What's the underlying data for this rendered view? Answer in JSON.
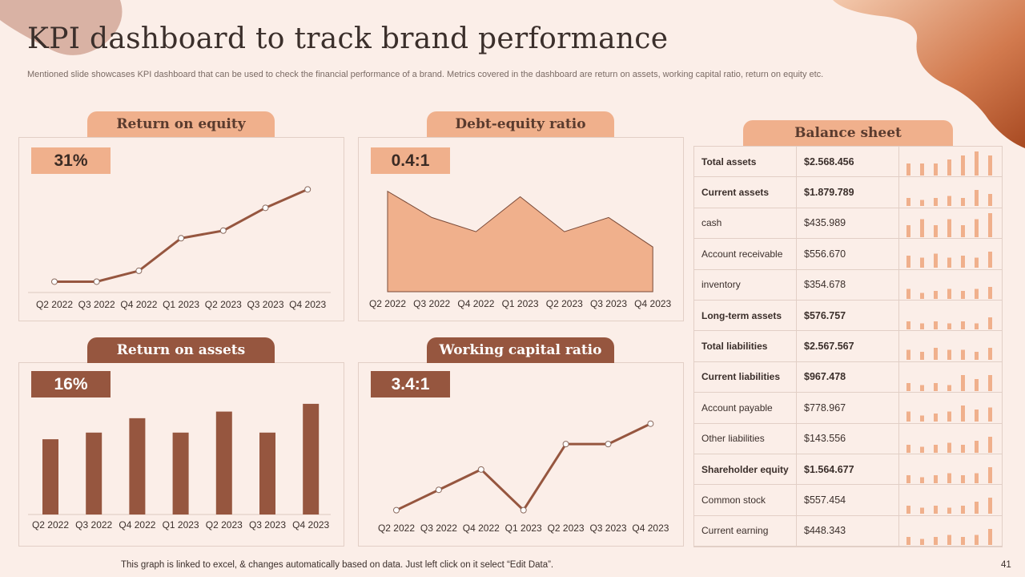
{
  "title": "KPI dashboard to track brand performance",
  "subtitle": "Mentioned slide showcases KPI dashboard that can be used to check the financial performance of a brand. Metrics covered in the dashboard are return on assets, working capital ratio, return on equity etc.",
  "footer": "This graph is linked to excel, & changes automatically based on data. Just left click on it select “Edit Data”.",
  "page_number": "41",
  "colors": {
    "light": "#f0b08c",
    "dark": "#96563f",
    "background": "#fbeee8"
  },
  "panels": {
    "roe": {
      "tab": "Return on equity",
      "kpi": "31%"
    },
    "der": {
      "tab": "Debt-equity ratio",
      "kpi": "0.4:1"
    },
    "roa": {
      "tab": "Return on assets",
      "kpi": "16%"
    },
    "wcr": {
      "tab": "Working capital ratio",
      "kpi": "3.4:1"
    },
    "bs": {
      "tab": "Balance sheet"
    }
  },
  "chart_data": [
    {
      "id": "roe",
      "type": "line",
      "categories": [
        "Q2 2022",
        "Q3 2022",
        "Q4 2022",
        "Q1 2023",
        "Q2 2023",
        "Q3 2023",
        "Q4 2023"
      ],
      "values": [
        1.0,
        1.0,
        2.0,
        5.0,
        5.7,
        7.8,
        9.5
      ],
      "ylim": [
        0,
        11
      ],
      "grid": false
    },
    {
      "id": "der",
      "type": "area",
      "categories": [
        "Q2 2022",
        "Q3 2022",
        "Q4 2022",
        "Q1 2023",
        "Q2 2023",
        "Q3 2023",
        "Q4 2023"
      ],
      "values": [
        9.2,
        6.8,
        5.5,
        8.7,
        5.5,
        6.8,
        4.1
      ],
      "ylim": [
        0,
        10.5
      ],
      "grid": false
    },
    {
      "id": "roa",
      "type": "bar",
      "categories": [
        "Q2 2022",
        "Q3 2022",
        "Q4 2022",
        "Q1 2023",
        "Q2 2023",
        "Q3 2023",
        "Q4 2023"
      ],
      "values": [
        6.8,
        7.4,
        8.7,
        7.4,
        9.3,
        7.4,
        10.0
      ],
      "ylim": [
        0,
        10.5
      ],
      "grid": false
    },
    {
      "id": "wcr",
      "type": "line",
      "categories": [
        "Q2 2022",
        "Q3 2022",
        "Q4 2022",
        "Q1 2023",
        "Q2 2023",
        "Q3 2023",
        "Q4 2023"
      ],
      "values": [
        2.0,
        4.0,
        6.0,
        2.0,
        8.5,
        8.5,
        10.5
      ],
      "ylim": [
        0,
        13
      ],
      "grid": false
    }
  ],
  "balance_sheet": [
    {
      "label": "Total assets",
      "value": "$2.568.456",
      "bold": true,
      "spark": [
        3,
        3,
        3,
        4,
        5,
        6,
        5
      ]
    },
    {
      "label": "Current assets",
      "value": "$1.879.789",
      "bold": true,
      "spark": [
        2,
        1.5,
        2,
        2.5,
        2,
        4,
        3
      ]
    },
    {
      "label": "cash",
      "value": "$435.989",
      "bold": false,
      "spark": [
        3,
        4.5,
        3,
        4.5,
        3,
        4.5,
        6
      ]
    },
    {
      "label": "Account receivable",
      "value": "$556.670",
      "bold": false,
      "spark": [
        3,
        2.5,
        3.5,
        2.5,
        3,
        2.5,
        4
      ]
    },
    {
      "label": "inventory",
      "value": "$354.678",
      "bold": false,
      "spark": [
        2.5,
        1.5,
        2,
        2.5,
        2,
        2.5,
        3
      ]
    },
    {
      "label": "Long-term assets",
      "value": "$576.757",
      "bold": true,
      "spark": [
        2,
        1.5,
        2,
        1.5,
        2,
        1.5,
        3
      ]
    },
    {
      "label": "Total liabilities",
      "value": "$2.567.567",
      "bold": true,
      "spark": [
        2.5,
        2,
        3,
        2.5,
        2.5,
        2,
        3
      ]
    },
    {
      "label": "Current liabilities",
      "value": "$967.478",
      "bold": true,
      "spark": [
        2,
        1.5,
        2,
        1.5,
        4,
        3,
        4
      ]
    },
    {
      "label": "Account payable",
      "value": "$778.967",
      "bold": false,
      "spark": [
        2.5,
        1.5,
        2,
        2.5,
        4,
        3,
        3.5
      ]
    },
    {
      "label": "Other liabilities",
      "value": "$143.556",
      "bold": false,
      "spark": [
        2,
        1.5,
        2,
        2.5,
        2,
        3,
        4
      ]
    },
    {
      "label": "Shareholder equity",
      "value": "$1.564.677",
      "bold": true,
      "spark": [
        2,
        1.5,
        2,
        2.5,
        2,
        2.5,
        4
      ]
    },
    {
      "label": "Common stock",
      "value": "$557.454",
      "bold": false,
      "spark": [
        2,
        1.5,
        2,
        1.5,
        2,
        3,
        4
      ]
    },
    {
      "label": "Current earning",
      "value": "$448.343",
      "bold": false,
      "spark": [
        2,
        1.5,
        2,
        2.5,
        2,
        2.5,
        4
      ]
    }
  ]
}
